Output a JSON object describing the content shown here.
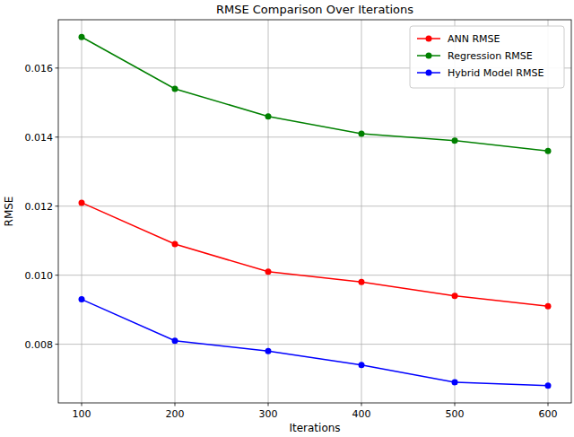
{
  "chart_data": {
    "type": "line",
    "title": "RMSE Comparison Over Iterations",
    "x_label": "Iterations",
    "y_label": "RMSE",
    "x": [
      100,
      200,
      300,
      400,
      500,
      600
    ],
    "series": [
      {
        "name": "ANN RMSE",
        "color": "#ff0000",
        "marker": "circle",
        "values": [
          0.0121,
          0.0109,
          0.0101,
          0.0098,
          0.0094,
          0.0091
        ]
      },
      {
        "name": "Regression RMSE",
        "color": "#008000",
        "marker": "circle",
        "values": [
          0.0169,
          0.0154,
          0.0146,
          0.0141,
          0.0139,
          0.0136
        ]
      },
      {
        "name": "Hybrid Model RMSE",
        "color": "#0000ff",
        "marker": "circle",
        "values": [
          0.0093,
          0.0081,
          0.0078,
          0.0074,
          0.0069,
          0.0068
        ]
      }
    ],
    "xlim": [
      75,
      625
    ],
    "xticks": [
      100,
      200,
      300,
      400,
      500,
      600
    ],
    "ylim": [
      0.0063,
      0.0174
    ],
    "yticks": [
      0.008,
      {
        "value": 0.01,
        "label": "0.010"
      },
      0.012,
      0.014,
      0.016
    ],
    "grid": true,
    "legend": "upper right"
  }
}
